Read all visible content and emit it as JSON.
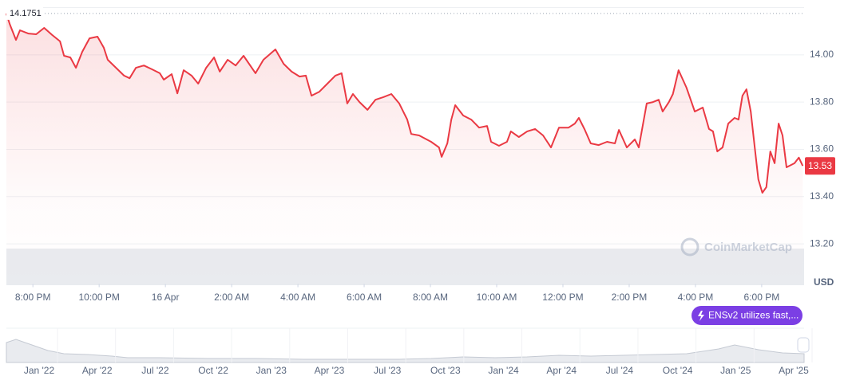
{
  "chart_data": {
    "type": "line",
    "color": "#ea3943",
    "high_value": 14.1751,
    "last_value": 13.53,
    "y_axis_unit": "USD",
    "watermark": "CoinMarketCap",
    "badge": "ENSv2 utilizes fast,...",
    "xlim": [
      -4.8,
      19.28
    ],
    "ylim": [
      13.03,
      14.2
    ],
    "grid": true,
    "xticks": [
      {
        "value": -4,
        "label": "8:00 PM"
      },
      {
        "value": -2,
        "label": "10:00 PM"
      },
      {
        "value": 0,
        "label": "16 Apr"
      },
      {
        "value": 2,
        "label": "2:00 AM"
      },
      {
        "value": 4,
        "label": "4:00 AM"
      },
      {
        "value": 6,
        "label": "6:00 AM"
      },
      {
        "value": 8,
        "label": "8:00 AM"
      },
      {
        "value": 10,
        "label": "10:00 AM"
      },
      {
        "value": 12,
        "label": "12:00 PM"
      },
      {
        "value": 14,
        "label": "2:00 PM"
      },
      {
        "value": 16,
        "label": "4:00 PM"
      },
      {
        "value": 18,
        "label": "6:00 PM"
      }
    ],
    "yticks": [
      {
        "value": 13.2,
        "label": "13.20"
      },
      {
        "value": 13.4,
        "label": "13.40"
      },
      {
        "value": 13.6,
        "label": "13.60"
      },
      {
        "value": 13.8,
        "label": "13.80"
      },
      {
        "value": 14,
        "label": "14.00"
      }
    ],
    "navigator_labels": [
      "Jan '22",
      "Apr '22",
      "Jul '22",
      "Oct '22",
      "Jan '23",
      "Apr '23",
      "Jul '23",
      "Oct '23",
      "Jan '24",
      "Apr '24",
      "Jul '24",
      "Oct '24",
      "Jan '25",
      "Apr '25"
    ],
    "x": [
      -4.8,
      -4.7,
      -4.51,
      -4.39,
      -4.14,
      -3.9,
      -3.66,
      -3.42,
      -3.18,
      -3.06,
      -2.87,
      -2.7,
      -2.51,
      -2.29,
      -2.05,
      -1.86,
      -1.74,
      -1.49,
      -1.25,
      -1.08,
      -0.89,
      -0.65,
      -0.41,
      -0.17,
      -0.05,
      0.19,
      0.36,
      0.55,
      0.79,
      0.99,
      1.23,
      1.47,
      1.64,
      1.88,
      2.12,
      2.36,
      2.72,
      2.96,
      3.32,
      3.57,
      3.81,
      4.05,
      4.24,
      4.41,
      4.65,
      4.89,
      5.13,
      5.32,
      5.49,
      5.66,
      5.86,
      6.1,
      6.34,
      6.58,
      6.82,
      7.06,
      7.3,
      7.42,
      7.66,
      8.02,
      8.26,
      8.34,
      8.51,
      8.63,
      8.75,
      8.99,
      9.23,
      9.47,
      9.71,
      9.83,
      10.07,
      10.31,
      10.43,
      10.67,
      10.92,
      11.16,
      11.4,
      11.64,
      11.88,
      12.17,
      12.36,
      12.48,
      12.65,
      12.84,
      13.08,
      13.33,
      13.57,
      13.69,
      13.93,
      14.17,
      14.29,
      14.53,
      14.72,
      14.89,
      15.01,
      15.2,
      15.32,
      15.49,
      15.73,
      15.98,
      16.22,
      16.41,
      16.53,
      16.66,
      16.82,
      16.99,
      17.18,
      17.3,
      17.42,
      17.54,
      17.67,
      17.79,
      17.9,
      18.02,
      18.14,
      18.26,
      18.39,
      18.51,
      18.63,
      18.75,
      18.99,
      19.12,
      19.24
    ],
    "values": [
      14.175,
      14.131,
      14.063,
      14.104,
      14.09,
      14.087,
      14.114,
      14.084,
      14.057,
      13.996,
      13.989,
      13.945,
      14.013,
      14.07,
      14.077,
      14.03,
      13.979,
      13.945,
      13.912,
      13.901,
      13.945,
      13.955,
      13.939,
      13.922,
      13.895,
      13.918,
      13.837,
      13.935,
      13.912,
      13.878,
      13.945,
      13.989,
      13.929,
      13.979,
      13.955,
      13.996,
      13.922,
      13.979,
      14.023,
      13.962,
      13.929,
      13.908,
      13.912,
      13.827,
      13.844,
      13.878,
      13.912,
      13.922,
      13.794,
      13.834,
      13.8,
      13.767,
      13.81,
      13.821,
      13.834,
      13.794,
      13.726,
      13.665,
      13.659,
      13.632,
      13.608,
      13.568,
      13.625,
      13.726,
      13.787,
      13.743,
      13.726,
      13.692,
      13.699,
      13.632,
      13.615,
      13.632,
      13.676,
      13.652,
      13.676,
      13.686,
      13.659,
      13.608,
      13.692,
      13.692,
      13.709,
      13.733,
      13.686,
      13.625,
      13.618,
      13.632,
      13.625,
      13.682,
      13.608,
      13.642,
      13.608,
      13.794,
      13.8,
      13.81,
      13.76,
      13.8,
      13.834,
      13.935,
      13.861,
      13.76,
      13.777,
      13.686,
      13.676,
      13.591,
      13.608,
      13.709,
      13.733,
      13.726,
      13.827,
      13.854,
      13.76,
      13.608,
      13.473,
      13.416,
      13.44,
      13.591,
      13.541,
      13.709,
      13.659,
      13.524,
      13.541,
      13.565,
      13.53
    ]
  }
}
